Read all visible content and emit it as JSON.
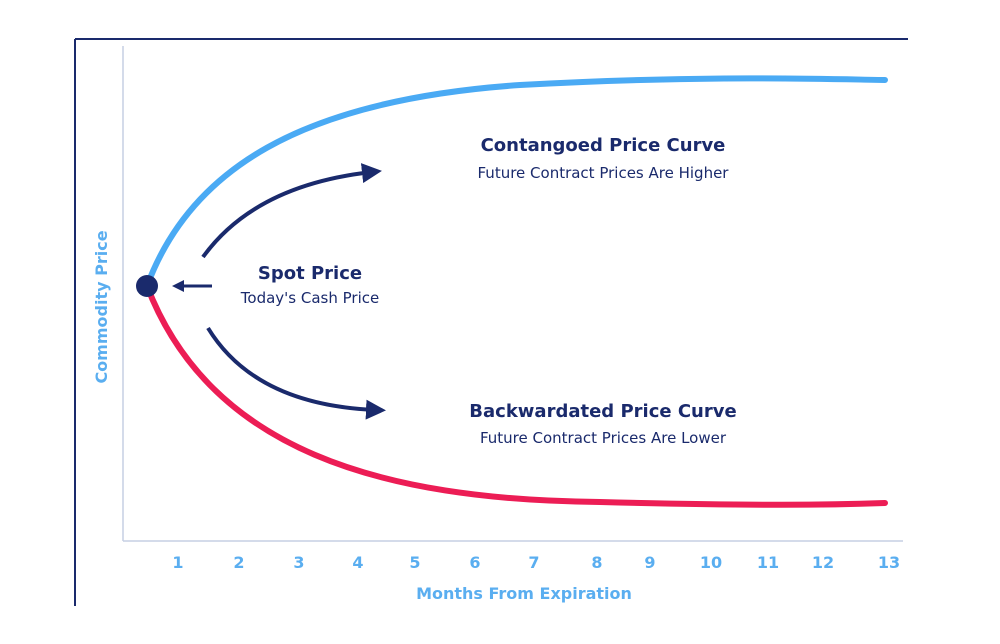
{
  "colors": {
    "frame": "#1a2a6c",
    "axis": "#c5cfe3",
    "contango": "#4aaaf4",
    "backwardation": "#ec1d55",
    "arrow": "#1a2a6c",
    "text_dark": "#1a2a6c",
    "text_light": "#5aaef0"
  },
  "axes": {
    "y_title": "Commodity Price",
    "x_title": "Months From Expiration",
    "x_ticks": [
      "1",
      "2",
      "3",
      "4",
      "5",
      "6",
      "7",
      "8",
      "9",
      "10",
      "11",
      "12",
      "13"
    ]
  },
  "spot": {
    "title": "Spot Price",
    "subtitle": "Today's Cash Price"
  },
  "contango": {
    "title": "Contangoed Price Curve",
    "subtitle": "Future Contract Prices Are Higher"
  },
  "backwardation": {
    "title": "Backwardated Price Curve",
    "subtitle": "Future Contract Prices Are Lower"
  },
  "icons": {
    "spot_point": "filled-circle",
    "arrows": [
      "arrow-left",
      "curved-arrow-up-right",
      "curved-arrow-down-right"
    ]
  }
}
